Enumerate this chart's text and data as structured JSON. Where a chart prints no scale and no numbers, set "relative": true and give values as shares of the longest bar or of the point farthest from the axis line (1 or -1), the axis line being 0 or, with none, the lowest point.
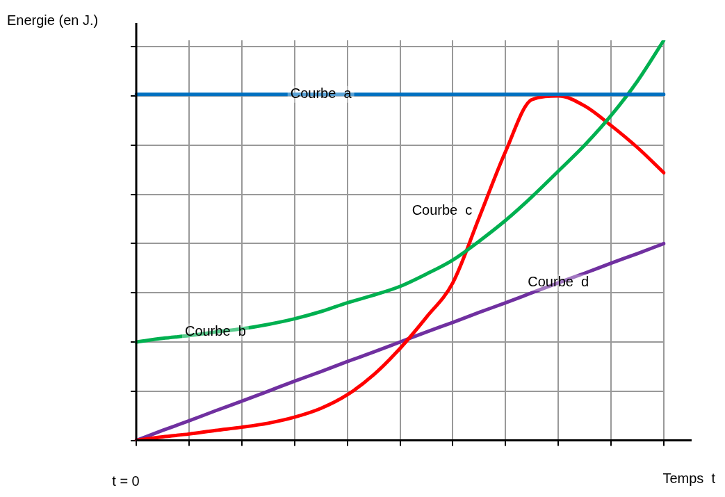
{
  "chart_data": {
    "type": "line",
    "relative": true,
    "xlabel": "Temps  t",
    "ylabel": "Energie (en J.)",
    "annotations": [
      "t = 0"
    ],
    "grid": true,
    "legend": false,
    "marker": "none",
    "line_style": "solid",
    "categories": [
      null,
      null,
      null,
      null,
      null,
      null,
      null,
      null,
      null,
      null,
      null,
      null,
      null,
      null,
      null,
      null,
      null,
      null,
      null,
      null,
      null
    ],
    "series": [
      {
        "name": "Courbe  a",
        "color": "#0070c0",
        "values": [
          0.865,
          0.865,
          0.865,
          0.865,
          0.865,
          0.865,
          0.865,
          0.865,
          0.865,
          0.865,
          0.865,
          0.865,
          0.865,
          0.865,
          0.865,
          0.865,
          0.865,
          0.865,
          0.865,
          0.865,
          0.865
        ]
      },
      {
        "name": "Courbe  b",
        "color": "#00b050",
        "values": [
          0.246,
          0.255,
          0.262,
          0.271,
          0.279,
          0.29,
          0.304,
          0.322,
          0.344,
          0.363,
          0.385,
          0.416,
          0.451,
          0.498,
          0.55,
          0.609,
          0.673,
          0.738,
          0.812,
          0.898,
          1
        ]
      },
      {
        "name": "Courbe  c",
        "color": "#ff0000",
        "values": [
          0,
          0.009,
          0.016,
          0.025,
          0.033,
          0.043,
          0.058,
          0.08,
          0.114,
          0.164,
          0.23,
          0.308,
          0.394,
          0.557,
          0.722,
          0.852,
          0.861,
          0.836,
          0.787,
          0.732,
          0.669
        ]
      },
      {
        "name": "Courbe  d",
        "color": "#7030a0",
        "values": [
          0,
          0.025,
          0.049,
          0.074,
          0.098,
          0.123,
          0.148,
          0.172,
          0.197,
          0.221,
          0.246,
          0.271,
          0.295,
          0.32,
          0.344,
          0.369,
          0.394,
          0.418,
          0.443,
          0.467,
          0.492
        ]
      }
    ]
  }
}
